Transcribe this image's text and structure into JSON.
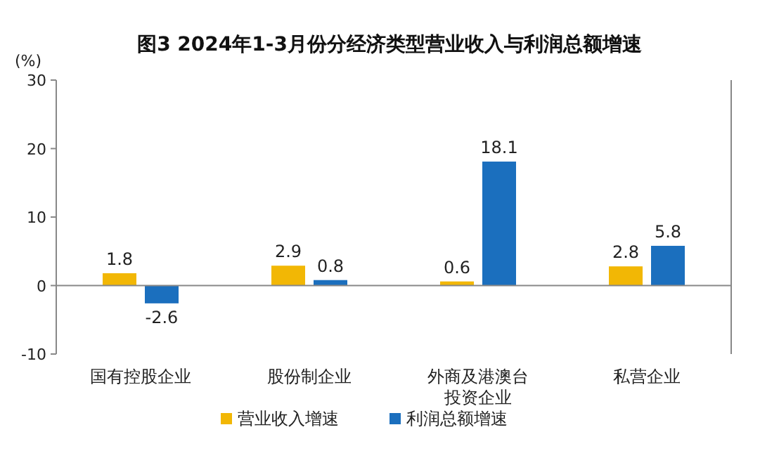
{
  "chart_data": {
    "type": "bar",
    "title": "图3 2024年1-3月份分经济类型营业收入与利润总额增速",
    "ylabel": "(%)",
    "categories": [
      "国有控股企业",
      "股份制企业",
      "外商及港澳台投资企业",
      "私营企业"
    ],
    "series": [
      {
        "name": "营业收入增速",
        "color": "#f2b705",
        "values": [
          1.8,
          2.9,
          0.6,
          2.8
        ]
      },
      {
        "name": "利润总额增速",
        "color": "#1b6fbe",
        "values": [
          -2.6,
          0.8,
          18.1,
          5.8
        ]
      }
    ],
    "ylim": [
      -10,
      30
    ],
    "yticks": [
      -10,
      0,
      10,
      20,
      30
    ],
    "data_labels": true,
    "legend": "bottom"
  }
}
